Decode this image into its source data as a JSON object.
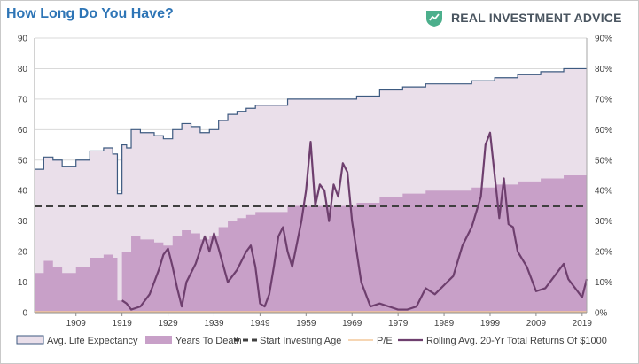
{
  "header": {
    "title": "How Long Do You Have?",
    "logo_text": "REAL INVESTMENT ADVICE",
    "logo_color": "#4caf8c"
  },
  "chart_data": {
    "type": "area",
    "title": "How Long Do You Have?",
    "x_tick_labels": [
      "1909",
      "1919",
      "1929",
      "1939",
      "1949",
      "1959",
      "1969",
      "1979",
      "1989",
      "1999",
      "2009",
      "2019"
    ],
    "xlim": [
      1900,
      2020
    ],
    "ylim_left": [
      0,
      90
    ],
    "ylim_right": [
      0,
      90
    ],
    "y_ticks_left": [
      "0",
      "10",
      "20",
      "30",
      "40",
      "50",
      "60",
      "70",
      "80",
      "90"
    ],
    "y_ticks_right": [
      "0%",
      "10%",
      "20%",
      "30%",
      "40%",
      "50%",
      "60%",
      "70%",
      "80%",
      "90%"
    ],
    "grid": true,
    "legend_position": "bottom",
    "colors": {
      "life_expectancy_fill": "#eadfea",
      "life_expectancy_line": "#3d5a80",
      "years_to_death": "#c8a0c8",
      "start_age": "#404040",
      "pe": "#f4c89b",
      "rolling": "#6e3f6e"
    },
    "series": [
      {
        "name": "Avg. Life Expectancy",
        "kind": "area-step",
        "axis": "left",
        "points": [
          [
            1900,
            47
          ],
          [
            1902,
            51
          ],
          [
            1904,
            50
          ],
          [
            1906,
            48
          ],
          [
            1909,
            50
          ],
          [
            1912,
            53
          ],
          [
            1915,
            54
          ],
          [
            1917,
            52
          ],
          [
            1918,
            39
          ],
          [
            1919,
            55
          ],
          [
            1920,
            54
          ],
          [
            1921,
            60
          ],
          [
            1923,
            59
          ],
          [
            1926,
            58
          ],
          [
            1928,
            57
          ],
          [
            1930,
            60
          ],
          [
            1932,
            62
          ],
          [
            1934,
            61
          ],
          [
            1936,
            59
          ],
          [
            1938,
            60
          ],
          [
            1940,
            63
          ],
          [
            1942,
            65
          ],
          [
            1944,
            66
          ],
          [
            1946,
            67
          ],
          [
            1948,
            68
          ],
          [
            1950,
            68
          ],
          [
            1955,
            70
          ],
          [
            1960,
            70
          ],
          [
            1965,
            70
          ],
          [
            1970,
            71
          ],
          [
            1975,
            73
          ],
          [
            1980,
            74
          ],
          [
            1985,
            75
          ],
          [
            1990,
            75
          ],
          [
            1995,
            76
          ],
          [
            2000,
            77
          ],
          [
            2005,
            78
          ],
          [
            2010,
            79
          ],
          [
            2015,
            80
          ],
          [
            2020,
            80
          ]
        ]
      },
      {
        "name": "Years To Death",
        "kind": "area-step",
        "axis": "left",
        "points": [
          [
            1900,
            13
          ],
          [
            1902,
            17
          ],
          [
            1904,
            15
          ],
          [
            1906,
            13
          ],
          [
            1909,
            15
          ],
          [
            1912,
            18
          ],
          [
            1915,
            19
          ],
          [
            1917,
            18
          ],
          [
            1918,
            4
          ],
          [
            1919,
            20
          ],
          [
            1921,
            25
          ],
          [
            1923,
            24
          ],
          [
            1926,
            23
          ],
          [
            1928,
            22
          ],
          [
            1930,
            25
          ],
          [
            1932,
            27
          ],
          [
            1934,
            26
          ],
          [
            1936,
            24
          ],
          [
            1938,
            25
          ],
          [
            1940,
            28
          ],
          [
            1942,
            30
          ],
          [
            1944,
            31
          ],
          [
            1946,
            32
          ],
          [
            1948,
            33
          ],
          [
            1950,
            33
          ],
          [
            1955,
            35
          ],
          [
            1960,
            35
          ],
          [
            1965,
            35
          ],
          [
            1970,
            36
          ],
          [
            1975,
            38
          ],
          [
            1980,
            39
          ],
          [
            1985,
            40
          ],
          [
            1990,
            40
          ],
          [
            1995,
            41
          ],
          [
            2000,
            42
          ],
          [
            2005,
            43
          ],
          [
            2010,
            44
          ],
          [
            2015,
            45
          ],
          [
            2020,
            45
          ]
        ]
      },
      {
        "name": "Start Investing Age",
        "kind": "dashed-line",
        "axis": "left",
        "value": 35
      },
      {
        "name": "P/E",
        "kind": "line",
        "axis": "left",
        "points": [
          [
            1900,
            0
          ],
          [
            2020,
            0
          ]
        ]
      },
      {
        "name": "Rolling Avg. 20-Yr Total Returns Of $1000",
        "kind": "line",
        "axis": "right",
        "points": [
          [
            1919,
            4
          ],
          [
            1920,
            3
          ],
          [
            1921,
            1
          ],
          [
            1923,
            2
          ],
          [
            1925,
            6
          ],
          [
            1927,
            14
          ],
          [
            1928,
            19
          ],
          [
            1929,
            21
          ],
          [
            1930,
            15
          ],
          [
            1931,
            8
          ],
          [
            1932,
            2
          ],
          [
            1933,
            10
          ],
          [
            1935,
            16
          ],
          [
            1937,
            25
          ],
          [
            1938,
            20
          ],
          [
            1939,
            26
          ],
          [
            1940,
            21
          ],
          [
            1942,
            10
          ],
          [
            1944,
            14
          ],
          [
            1946,
            20
          ],
          [
            1947,
            22
          ],
          [
            1948,
            15
          ],
          [
            1949,
            3
          ],
          [
            1950,
            2
          ],
          [
            1951,
            6
          ],
          [
            1952,
            15
          ],
          [
            1953,
            25
          ],
          [
            1954,
            28
          ],
          [
            1955,
            20
          ],
          [
            1956,
            15
          ],
          [
            1958,
            30
          ],
          [
            1959,
            40
          ],
          [
            1960,
            56
          ],
          [
            1961,
            35
          ],
          [
            1962,
            42
          ],
          [
            1963,
            40
          ],
          [
            1964,
            30
          ],
          [
            1965,
            42
          ],
          [
            1966,
            38
          ],
          [
            1967,
            49
          ],
          [
            1968,
            46
          ],
          [
            1969,
            30
          ],
          [
            1970,
            20
          ],
          [
            1971,
            10
          ],
          [
            1973,
            2
          ],
          [
            1975,
            3
          ],
          [
            1977,
            2
          ],
          [
            1979,
            1
          ],
          [
            1981,
            1
          ],
          [
            1983,
            2
          ],
          [
            1985,
            8
          ],
          [
            1987,
            6
          ],
          [
            1989,
            9
          ],
          [
            1991,
            12
          ],
          [
            1993,
            22
          ],
          [
            1995,
            28
          ],
          [
            1997,
            38
          ],
          [
            1998,
            55
          ],
          [
            1999,
            59
          ],
          [
            2000,
            45
          ],
          [
            2001,
            31
          ],
          [
            2002,
            44
          ],
          [
            2003,
            29
          ],
          [
            2004,
            28
          ],
          [
            2005,
            20
          ],
          [
            2007,
            15
          ],
          [
            2009,
            7
          ],
          [
            2011,
            8
          ],
          [
            2013,
            12
          ],
          [
            2015,
            16
          ],
          [
            2016,
            11
          ],
          [
            2018,
            7
          ],
          [
            2019,
            5
          ],
          [
            2020,
            11
          ]
        ]
      }
    ]
  }
}
